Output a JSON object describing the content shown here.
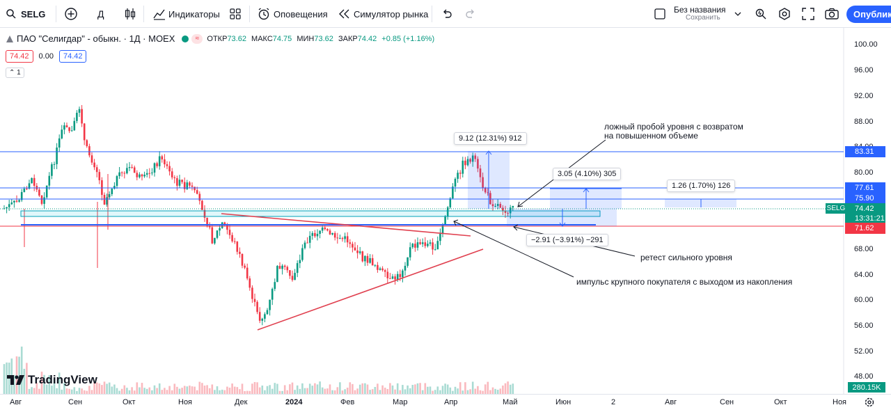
{
  "toolbar": {
    "symbol": "SELG",
    "interval": "Д",
    "indicators_label": "Индикаторы",
    "alerts_label": "Оповещения",
    "replay_label": "Симулятор рынка",
    "layout_name": "Без названия",
    "save_label": "Сохранить",
    "publish_label": "Опублико"
  },
  "legend": {
    "title": "ПАО \"Селигдар\" - обыкн. · 1Д · MOEX",
    "open_label": "ОТКР",
    "open": "73.62",
    "high_label": "МАКС",
    "high": "74.75",
    "low_label": "МИН",
    "low": "73.62",
    "close_label": "ЗАКР",
    "close": "74.42",
    "change": "+0.85 (+1.16%)",
    "bid": "74.42",
    "spread": "0.00",
    "ask": "74.42",
    "collapse": "1"
  },
  "annotations": {
    "fake_breakout_1": "ложный пробой уровня с возвратом",
    "fake_breakout_2": "на повышенном объеме",
    "retest": "ретест сильного уровня",
    "impulse": "импульс крупного покупателя с выходом из накопления"
  },
  "measures": {
    "m1": "9.12 (12.31%) 912",
    "m2": "3.05 (4.10%) 305",
    "m3": "1.26 (1.70%) 126",
    "m4": "−2.91 (−3.91%) −291"
  },
  "price_axis": {
    "ticks": [
      "100.00",
      "96.00",
      "92.00",
      "88.00",
      "84.00",
      "80.00",
      "76.00",
      "72.00",
      "68.00",
      "64.00",
      "60.00",
      "56.00",
      "52.00",
      "48.00"
    ],
    "level_tags": [
      "83.31",
      "77.61",
      "75.90",
      "71.62"
    ],
    "ticker_tag": "SELG",
    "last_price": "74.42",
    "countdown": "13:31:21",
    "volume": "280.15K"
  },
  "time_axis": {
    "labels": [
      "Авг",
      "Сен",
      "Окт",
      "Ноя",
      "Дек",
      "2024",
      "Фев",
      "Мар",
      "Апр",
      "Май",
      "Июн",
      "2",
      "Авг",
      "Сен",
      "Окт",
      "Ноя"
    ]
  },
  "branding": {
    "logo": "TradingView"
  },
  "colors": {
    "up": "#089981",
    "down": "#f23645",
    "level_line": "#2962ff",
    "trend_line": "#e0404f",
    "accent": "#2962ff"
  }
}
